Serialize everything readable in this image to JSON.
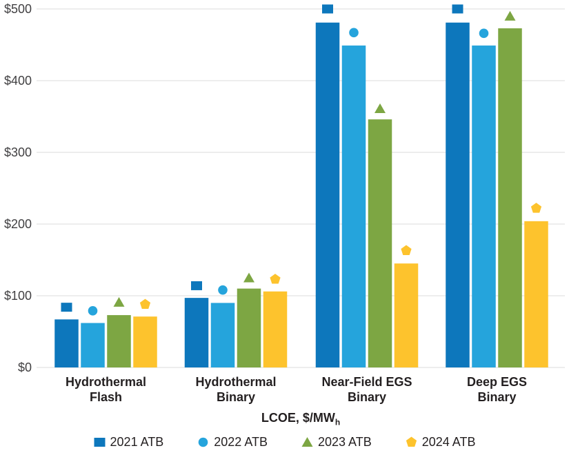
{
  "chart_data": {
    "type": "bar",
    "title": "",
    "xlabel": "LCOE, $/MW",
    "xlabel_subscript": "h",
    "ylim": [
      0,
      500
    ],
    "ytick_step": 100,
    "yticks": [
      "$0",
      "$100",
      "$200",
      "$300",
      "$400",
      "$500"
    ],
    "grid": "horizontal",
    "legend_position": "bottom",
    "categories": [
      {
        "line1": "Hydrothermal",
        "line2": "Flash"
      },
      {
        "line1": "Hydrothermal",
        "line2": "Binary"
      },
      {
        "line1": "Near-Field EGS",
        "line2": "Binary"
      },
      {
        "line1": "Deep EGS",
        "line2": "Binary"
      }
    ],
    "series": [
      {
        "name": "2021 ATB",
        "color": "#0d77bc",
        "marker_shape": "square",
        "bar_values": [
          67,
          97,
          481,
          481
        ],
        "marker_values": [
          84,
          114,
          500,
          500
        ]
      },
      {
        "name": "2022 ATB",
        "color": "#25a4dc",
        "marker_shape": "circle",
        "bar_values": [
          62,
          90,
          449,
          449
        ],
        "marker_values": [
          79,
          108,
          467,
          466
        ]
      },
      {
        "name": "2023 ATB",
        "color": "#7da643",
        "marker_shape": "triangle",
        "bar_values": [
          73,
          110,
          346,
          473
        ],
        "marker_values": [
          91,
          125,
          361,
          490
        ]
      },
      {
        "name": "2024 ATB",
        "color": "#fdc32d",
        "marker_shape": "pentagon",
        "bar_values": [
          71,
          106,
          145,
          204
        ],
        "marker_values": [
          88,
          123,
          163,
          222
        ]
      }
    ],
    "colors": {
      "gridline": "#e2e2e2",
      "axis_tick_text": "#414042",
      "label_text": "#231f20",
      "background": "#ffffff"
    }
  }
}
